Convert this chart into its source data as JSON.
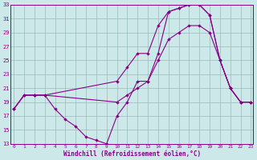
{
  "xlabel": "Windchill (Refroidissement éolien,°C)",
  "bg_color": "#cce8e8",
  "line_color": "#880088",
  "grid_color": "#99bbbb",
  "curve1_x": [
    0,
    1,
    2,
    3,
    10,
    11,
    12,
    13,
    14,
    15,
    16,
    17,
    18,
    19,
    20,
    21,
    22,
    23
  ],
  "curve1_y": [
    18,
    20,
    20,
    20,
    22,
    24,
    26,
    26,
    30,
    32,
    32.5,
    33,
    33,
    31.5,
    25,
    21,
    19,
    19
  ],
  "curve2_x": [
    0,
    1,
    2,
    3,
    10,
    11,
    12,
    13,
    14,
    15,
    16,
    17,
    18,
    19,
    20,
    21,
    22,
    23
  ],
  "curve2_y": [
    18,
    20,
    20,
    20,
    19,
    20,
    21,
    22,
    25,
    28,
    29,
    30,
    30,
    29,
    25,
    21,
    19,
    19
  ],
  "curve3_x": [
    0,
    1,
    2,
    3,
    4,
    5,
    6,
    7,
    8,
    9,
    10,
    11,
    12,
    13,
    14,
    15,
    16,
    17,
    18,
    19,
    20,
    21,
    22,
    23
  ],
  "curve3_y": [
    18,
    20,
    20,
    20,
    18,
    16.5,
    15.5,
    14,
    13.5,
    13,
    17,
    19,
    22,
    22,
    26,
    32,
    32.5,
    33,
    33,
    31.5,
    25,
    21,
    19,
    19
  ],
  "xlim": [
    -0.3,
    23.2
  ],
  "ylim": [
    13,
    33
  ],
  "xticks": [
    0,
    1,
    2,
    3,
    4,
    5,
    6,
    7,
    8,
    9,
    10,
    11,
    12,
    13,
    14,
    15,
    16,
    17,
    18,
    19,
    20,
    21,
    22,
    23
  ],
  "yticks": [
    13,
    15,
    17,
    19,
    21,
    23,
    25,
    27,
    29,
    31,
    33
  ]
}
